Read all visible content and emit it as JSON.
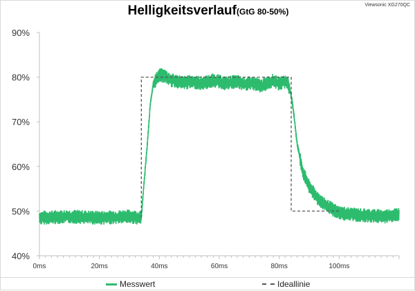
{
  "device_label": "Viewsonic XG270QC",
  "chart_data": {
    "type": "line",
    "title": "Helligkeitsverlauf",
    "subtitle": "(GtG 80-50%)",
    "x_ticks": [
      "0ms",
      "20ms",
      "40ms",
      "60ms",
      "80ms",
      "100ms"
    ],
    "x_tick_values": [
      0,
      20,
      40,
      60,
      80,
      100
    ],
    "y_ticks": [
      "40%",
      "50%",
      "60%",
      "70%",
      "80%",
      "90%"
    ],
    "y_tick_values": [
      40,
      50,
      60,
      70,
      80,
      90
    ],
    "xlim": [
      0,
      120
    ],
    "ylim": [
      40,
      90
    ],
    "grid": false,
    "legend_placement": "bottom",
    "series": [
      {
        "name": "Messwert",
        "color": "#2dbb6e",
        "noise_amplitude": 1.5,
        "x": [
          0,
          10,
          20,
          30,
          34,
          34.5,
          36,
          37,
          38,
          40,
          42,
          44,
          46,
          48,
          50,
          52,
          54,
          56,
          58,
          60,
          62,
          64,
          66,
          68,
          70,
          72,
          74,
          76,
          78,
          80,
          82,
          83,
          84,
          85,
          86,
          88,
          90,
          92,
          95,
          98,
          100,
          105,
          110,
          115,
          120
        ],
        "y": [
          48.5,
          48.8,
          48.5,
          48.8,
          48.5,
          53,
          65,
          74,
          78.5,
          80.5,
          80.2,
          79.3,
          79.1,
          78.7,
          78.9,
          78.9,
          78.6,
          78.9,
          79.3,
          79,
          78.6,
          78.8,
          79,
          78.4,
          78.6,
          78.5,
          78,
          78.7,
          79.2,
          78.5,
          79,
          78.5,
          76,
          71,
          65,
          58.5,
          55.5,
          53.5,
          51.5,
          50.3,
          49.6,
          49.2,
          49,
          48.8,
          49.3
        ]
      },
      {
        "name": "Ideallinie",
        "color": "#555555",
        "dashed": true,
        "x": [
          34,
          34,
          84,
          84,
          100
        ],
        "y": [
          48.5,
          80,
          80,
          50,
          50
        ]
      }
    ]
  }
}
